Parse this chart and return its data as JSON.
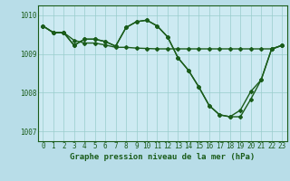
{
  "title": "Graphe pression niveau de la mer (hPa)",
  "background_color": "#b8dde8",
  "plot_background": "#cdeaf2",
  "line_color": "#1a5c1a",
  "ylim": [
    1006.75,
    1010.25
  ],
  "xlim": [
    -0.5,
    23.5
  ],
  "yticks": [
    1007,
    1008,
    1009,
    1010
  ],
  "ytick_labels": [
    "1007",
    "1008",
    "1009",
    "1010"
  ],
  "xticks": [
    0,
    1,
    2,
    3,
    4,
    5,
    6,
    7,
    8,
    9,
    10,
    11,
    12,
    13,
    14,
    15,
    16,
    17,
    18,
    19,
    20,
    21,
    22,
    23
  ],
  "line1": [
    1009.72,
    1009.55,
    1009.55,
    1009.35,
    1009.28,
    1009.28,
    1009.23,
    1009.17,
    1009.17,
    1009.15,
    1009.14,
    1009.13,
    1009.13,
    1009.13,
    1009.13,
    1009.13,
    1009.13,
    1009.13,
    1009.13,
    1009.13,
    1009.13,
    1009.13,
    1009.13,
    1009.22
  ],
  "line2": [
    1009.72,
    1009.55,
    1009.55,
    1009.22,
    1009.38,
    1009.38,
    1009.32,
    1009.2,
    1009.68,
    1009.83,
    1009.87,
    1009.72,
    1009.44,
    1008.9,
    1008.58,
    1008.15,
    1007.67,
    1007.43,
    1007.38,
    1007.38,
    1007.83,
    1008.33,
    1009.12,
    1009.22
  ],
  "line3": [
    1009.72,
    1009.55,
    1009.55,
    1009.22,
    1009.38,
    1009.38,
    1009.32,
    1009.2,
    1009.68,
    1009.83,
    1009.87,
    1009.72,
    1009.44,
    1008.9,
    1008.58,
    1008.15,
    1007.67,
    1007.43,
    1007.38,
    1007.55,
    1008.03,
    1008.33,
    1009.12,
    1009.22
  ],
  "grid_color": "#99cccc",
  "marker": "D",
  "markersize": 2.0,
  "linewidth": 1.0,
  "title_fontsize": 6.5,
  "tick_fontsize": 5.5
}
